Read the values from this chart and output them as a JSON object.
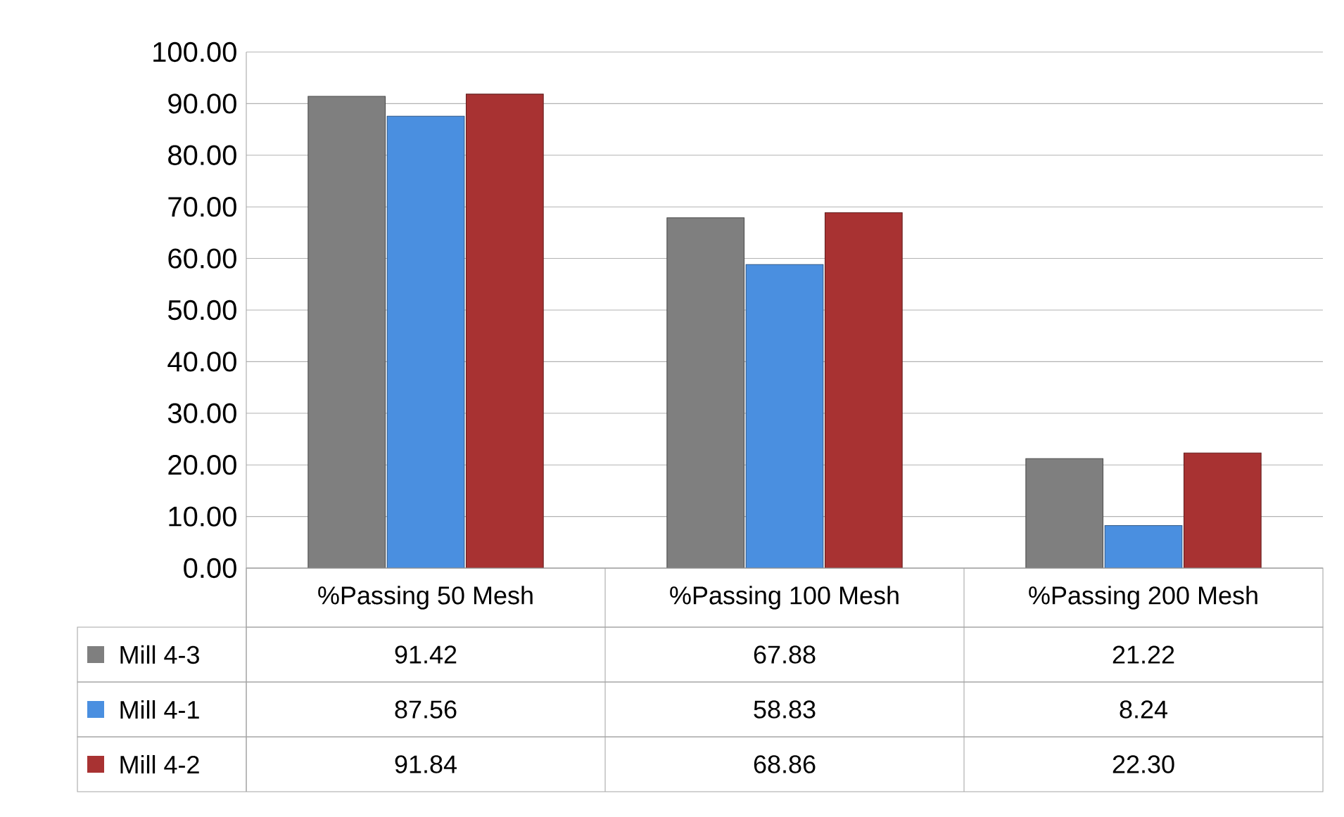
{
  "chart_data": {
    "type": "bar",
    "categories": [
      "%Passing 50 Mesh",
      "%Passing 100 Mesh",
      "%Passing 200 Mesh"
    ],
    "series": [
      {
        "name": "Mill 4-3",
        "color": "#7f7f7f",
        "values": [
          91.42,
          67.88,
          21.22
        ],
        "value_labels": [
          "91.42",
          "67.88",
          "21.22"
        ]
      },
      {
        "name": "Mill 4-1",
        "color": "#4a8fe0",
        "values": [
          87.56,
          58.83,
          8.24
        ],
        "value_labels": [
          "87.56",
          "58.83",
          "8.24"
        ]
      },
      {
        "name": "Mill 4-2",
        "color": "#a83232",
        "values": [
          91.84,
          68.86,
          22.3
        ],
        "value_labels": [
          "91.84",
          "68.86",
          "22.30"
        ]
      }
    ],
    "ylim": [
      0,
      100
    ],
    "yticks": [
      {
        "value": 0,
        "label": "0.00"
      },
      {
        "value": 10,
        "label": "10.00"
      },
      {
        "value": 20,
        "label": "20.00"
      },
      {
        "value": 30,
        "label": "30.00"
      },
      {
        "value": 40,
        "label": "40.00"
      },
      {
        "value": 50,
        "label": "50.00"
      },
      {
        "value": 60,
        "label": "60.00"
      },
      {
        "value": 70,
        "label": "70.00"
      },
      {
        "value": 80,
        "label": "80.00"
      },
      {
        "value": 90,
        "label": "90.00"
      },
      {
        "value": 100,
        "label": "100.00"
      }
    ],
    "grid": "y",
    "legend": "bottom"
  }
}
